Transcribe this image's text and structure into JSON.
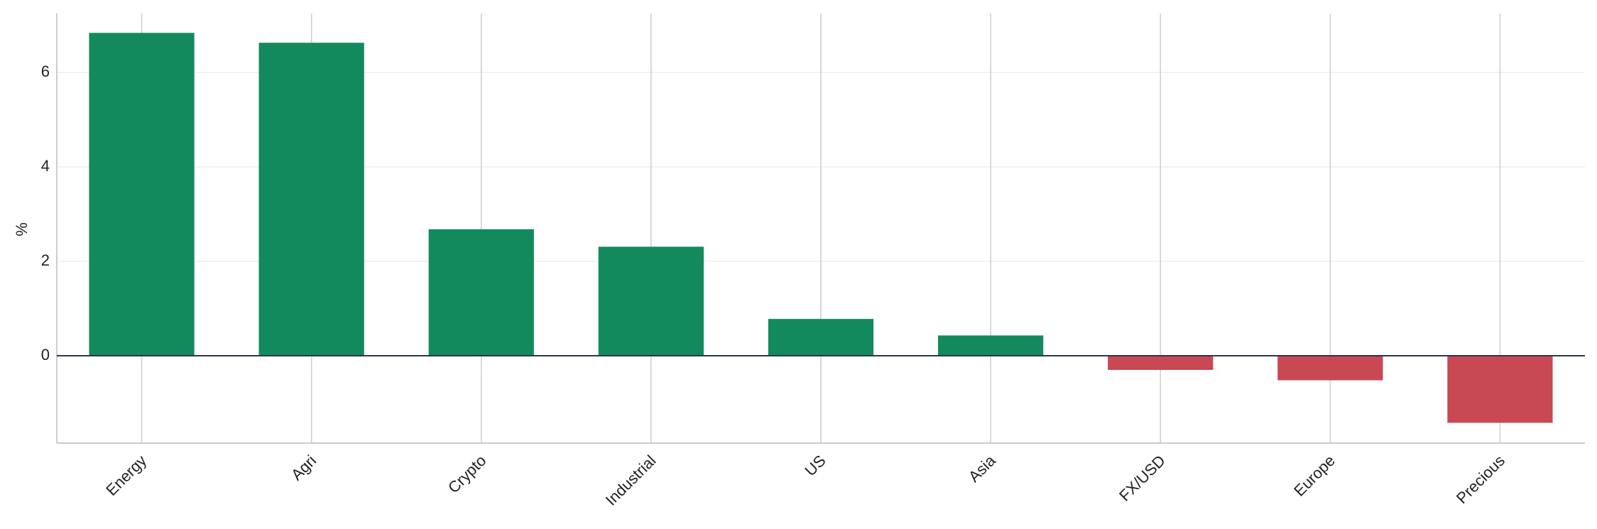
{
  "chart_data": {
    "type": "bar",
    "y_label": "%",
    "categories": [
      "Energy",
      "Agri",
      "Crypto",
      "Industrial",
      "US",
      "Asia",
      "FX/USD",
      "Europe",
      "Precious"
    ],
    "values": [
      6.84,
      6.63,
      2.68,
      2.31,
      0.78,
      0.43,
      -0.3,
      -0.52,
      -1.42
    ],
    "positive_color": "#138a5e",
    "negative_color": "#c84853",
    "ylim": [
      -1.85,
      7.25
    ],
    "yticks": [
      0,
      2,
      4,
      6
    ],
    "grid": true
  }
}
